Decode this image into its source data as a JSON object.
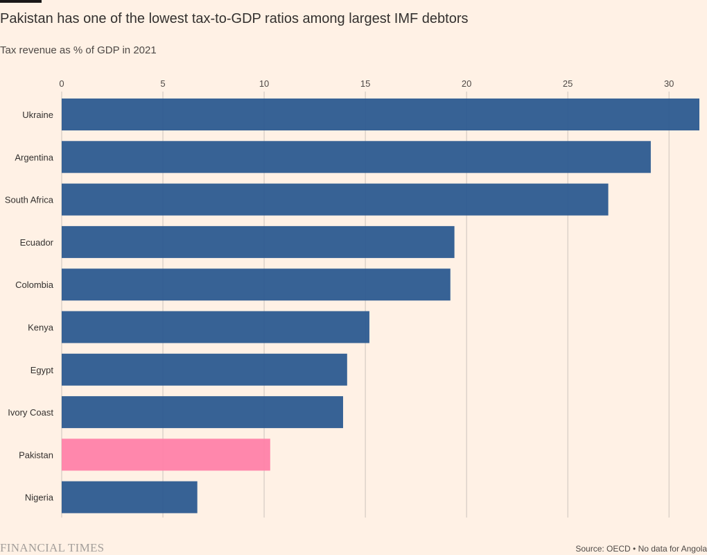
{
  "header": {
    "title": "Pakistan has one of the lowest tax-to-GDP ratios among largest IMF debtors",
    "subtitle": "Tax revenue as % of GDP in 2021"
  },
  "footer": {
    "logo_text": "FINANCIAL TIMES",
    "source": "Source: OECD • No data for Angola"
  },
  "colors": {
    "bar_default": "#28578f",
    "bar_highlight": "#ff7fa8",
    "grid": "#cbc3bc",
    "background": "#fff1e5"
  },
  "chart_data": {
    "type": "bar",
    "orientation": "horizontal",
    "title": "Pakistan has one of the lowest tax-to-GDP ratios among largest IMF debtors",
    "subtitle": "Tax revenue as % of GDP in 2021",
    "categories": [
      "Ukraine",
      "Argentina",
      "South Africa",
      "Ecuador",
      "Colombia",
      "Kenya",
      "Egypt",
      "Ivory Coast",
      "Pakistan",
      "Nigeria"
    ],
    "values": [
      31.5,
      29.1,
      27.0,
      19.4,
      19.2,
      15.2,
      14.1,
      13.9,
      10.3,
      6.7
    ],
    "highlight": "Pakistan",
    "xlim": [
      0,
      31.5
    ],
    "xticks": [
      0,
      5,
      10,
      15,
      20,
      25,
      30
    ],
    "xtick_labels": [
      "0",
      "5",
      "10",
      "15",
      "20",
      "25",
      "30"
    ],
    "axis_position": "top",
    "grid": true,
    "legend": false
  }
}
